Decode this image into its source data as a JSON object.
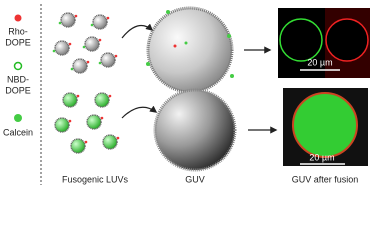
{
  "legend": {
    "rho_line1": "Rho-",
    "rho_line2": "DOPE",
    "nbd_line1": "NBD-",
    "nbd_line2": "DOPE",
    "calcein": "Calcein"
  },
  "labels": {
    "luvs": "Fusogenic LUVs",
    "guv": "GUV",
    "guv_after": "GUV after fusion"
  },
  "scale_bars": {
    "top": "20 µm",
    "bottom": "20 µm"
  }
}
